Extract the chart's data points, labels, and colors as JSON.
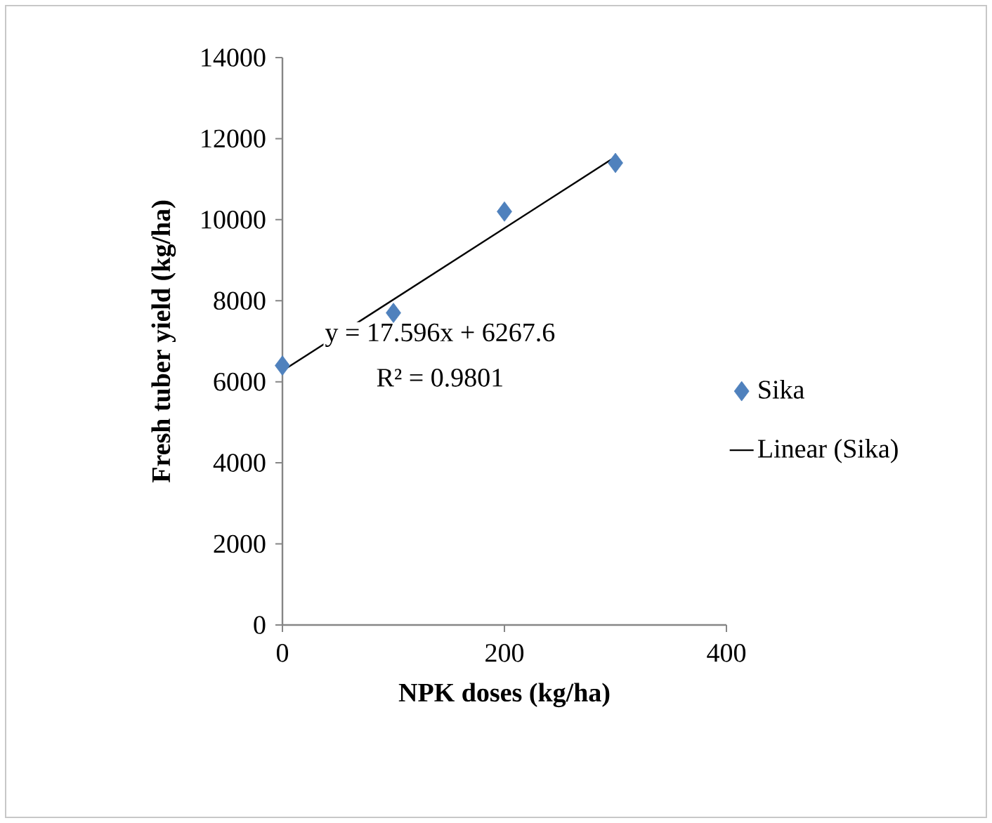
{
  "chart_data": {
    "type": "scatter",
    "xlabel": "NPK doses (kg/ha)",
    "ylabel": "Fresh tuber yield (kg/ha)",
    "x": [
      0,
      100,
      200,
      300
    ],
    "series": [
      {
        "name": "Sika",
        "color": "#4f81bd",
        "marker": "diamond",
        "values": [
          6400,
          7700,
          10200,
          11400
        ]
      },
      {
        "name": "Linear (Sika)",
        "type": "line",
        "color": "#000000",
        "marker": "none",
        "x": [
          0,
          300
        ],
        "values": [
          6270,
          11550
        ]
      }
    ],
    "annotations": [
      "y = 17.596x + 6267.6",
      "R² = 0.9801"
    ],
    "xlim": [
      0,
      400
    ],
    "xticks": [
      0,
      200,
      400
    ],
    "ylim": [
      0,
      14000
    ],
    "yticks": [
      0,
      2000,
      4000,
      6000,
      8000,
      10000,
      12000,
      14000
    ],
    "legend": "right"
  }
}
